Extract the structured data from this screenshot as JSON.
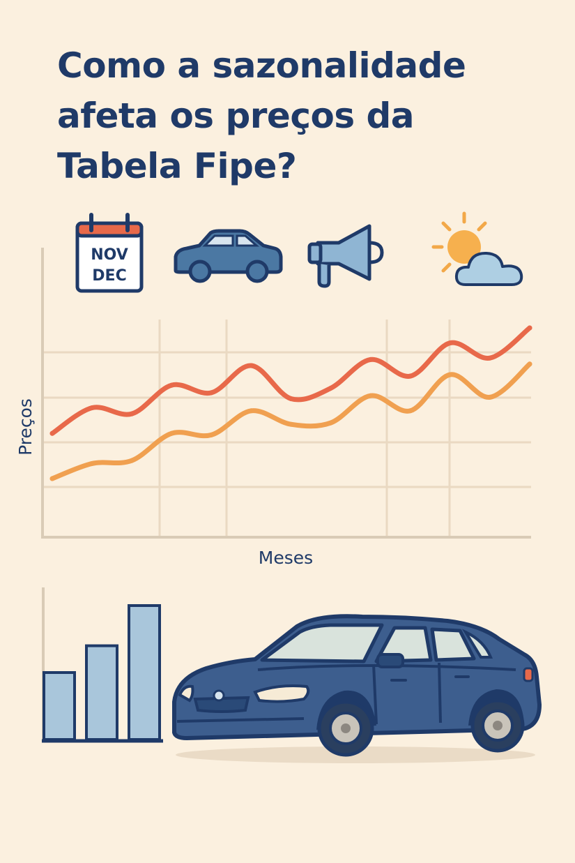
{
  "title_lines": [
    "Como a sazonalidade",
    "afeta os preços da",
    "Tabela Fipe?"
  ],
  "icons": {
    "calendar": {
      "name": "calendar-icon",
      "line1": "NOV",
      "line2": "DEC"
    },
    "car": {
      "name": "car-icon"
    },
    "megaphone": {
      "name": "megaphone-icon"
    },
    "weather": {
      "name": "sun-cloud-icon"
    }
  },
  "colors": {
    "background": "#FBF0DF",
    "navy": "#1F3A68",
    "line_red": "#E8694A",
    "line_orange": "#F0A050",
    "bar_fill": "#A9C6DB",
    "grid": "#EAD9C2"
  },
  "chart_data": [
    {
      "type": "line",
      "title": "",
      "xlabel": "Meses",
      "ylabel": "Preços",
      "grid": true,
      "legend": "none",
      "series": [
        {
          "values": [
            0.55,
            0.72,
            0.68,
            0.87,
            0.82,
            1.0,
            0.78,
            0.85,
            1.04,
            0.93,
            1.15,
            1.05,
            1.25
          ]
        },
        {
          "values": [
            0.25,
            0.35,
            0.37,
            0.55,
            0.54,
            0.7,
            0.61,
            0.62,
            0.8,
            0.7,
            0.94,
            0.79,
            1.01
          ]
        }
      ]
    },
    {
      "type": "bar",
      "categories": [
        "",
        "",
        ""
      ],
      "values": [
        1,
        1.4,
        2
      ]
    }
  ]
}
